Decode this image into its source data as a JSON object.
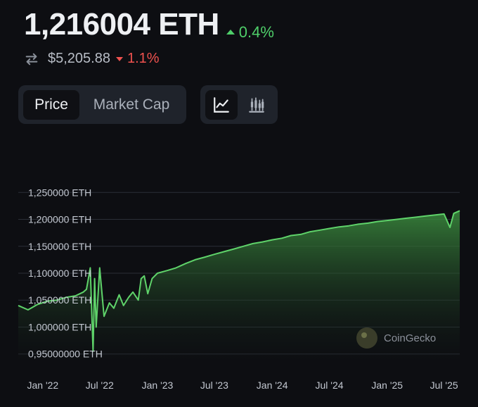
{
  "header": {
    "price": "1,216004 ETH",
    "change_up": "0.4%",
    "usd_price": "$5,205.88",
    "change_down": "1.1%"
  },
  "tabs": {
    "price_label": "Price",
    "market_cap_label": "Market Cap",
    "active": "Price"
  },
  "chart_type_buttons": {
    "active": "line"
  },
  "colors": {
    "background": "#0d0e12",
    "line": "#5fd36a",
    "up": "#4fcf6a",
    "down": "#f0524f"
  },
  "watermark": "CoinGecko",
  "chart_data": {
    "type": "area",
    "ylim": [
      0.93,
      1.27
    ],
    "yticks": [
      1.25,
      1.2,
      1.15,
      1.1,
      1.05,
      1.0,
      0.95
    ],
    "ytick_labels": [
      "1,250000 ETH",
      "1,200000 ETH",
      "1,150000 ETH",
      "1,100000 ETH",
      "1,050000 ETH",
      "1,000000 ETH",
      "0,95000000 ETH"
    ],
    "xticks": [
      "2022-01-01",
      "2022-07-01",
      "2023-01-01",
      "2023-07-01",
      "2024-01-01",
      "2024-07-01",
      "2025-01-01",
      "2025-07-01"
    ],
    "xtick_labels": [
      "Jan '22",
      "Jul '22",
      "Jan '23",
      "Jul '23",
      "Jan '24",
      "Jul '24",
      "Jan '25",
      "Jul '25"
    ],
    "xlim": [
      "2021-10-15",
      "2025-08-20"
    ],
    "series": [
      {
        "x": [
          "2021-10-15",
          "2021-11-15",
          "2021-12-15",
          "2022-01-15",
          "2022-02-15",
          "2022-03-15",
          "2022-04-15",
          "2022-05-10",
          "2022-05-20",
          "2022-06-01",
          "2022-06-10",
          "2022-06-15",
          "2022-06-20",
          "2022-07-01",
          "2022-07-15",
          "2022-08-01",
          "2022-08-15",
          "2022-09-01",
          "2022-09-15",
          "2022-10-01",
          "2022-10-15",
          "2022-11-01",
          "2022-11-10",
          "2022-11-20",
          "2022-12-01",
          "2022-12-15",
          "2023-01-01",
          "2023-02-01",
          "2023-03-01",
          "2023-04-01",
          "2023-05-01",
          "2023-06-01",
          "2023-07-01",
          "2023-08-01",
          "2023-09-01",
          "2023-10-01",
          "2023-11-01",
          "2023-12-01",
          "2024-01-01",
          "2024-02-01",
          "2024-03-01",
          "2024-04-01",
          "2024-05-01",
          "2024-06-01",
          "2024-07-01",
          "2024-08-01",
          "2024-09-01",
          "2024-10-01",
          "2024-11-01",
          "2024-12-01",
          "2025-01-01",
          "2025-02-01",
          "2025-03-01",
          "2025-04-01",
          "2025-05-01",
          "2025-06-01",
          "2025-07-01",
          "2025-07-20",
          "2025-08-01",
          "2025-08-20"
        ],
        "y": [
          1.04,
          1.032,
          1.042,
          1.048,
          1.05,
          1.055,
          1.058,
          1.065,
          1.07,
          1.11,
          0.955,
          1.09,
          1.0,
          1.11,
          1.02,
          1.045,
          1.035,
          1.06,
          1.04,
          1.055,
          1.065,
          1.05,
          1.09,
          1.095,
          1.062,
          1.09,
          1.1,
          1.105,
          1.11,
          1.118,
          1.125,
          1.13,
          1.135,
          1.14,
          1.145,
          1.15,
          1.155,
          1.158,
          1.162,
          1.165,
          1.17,
          1.172,
          1.177,
          1.18,
          1.183,
          1.186,
          1.188,
          1.191,
          1.193,
          1.196,
          1.198,
          1.2,
          1.202,
          1.204,
          1.206,
          1.208,
          1.21,
          1.185,
          1.211,
          1.216
        ]
      }
    ]
  }
}
